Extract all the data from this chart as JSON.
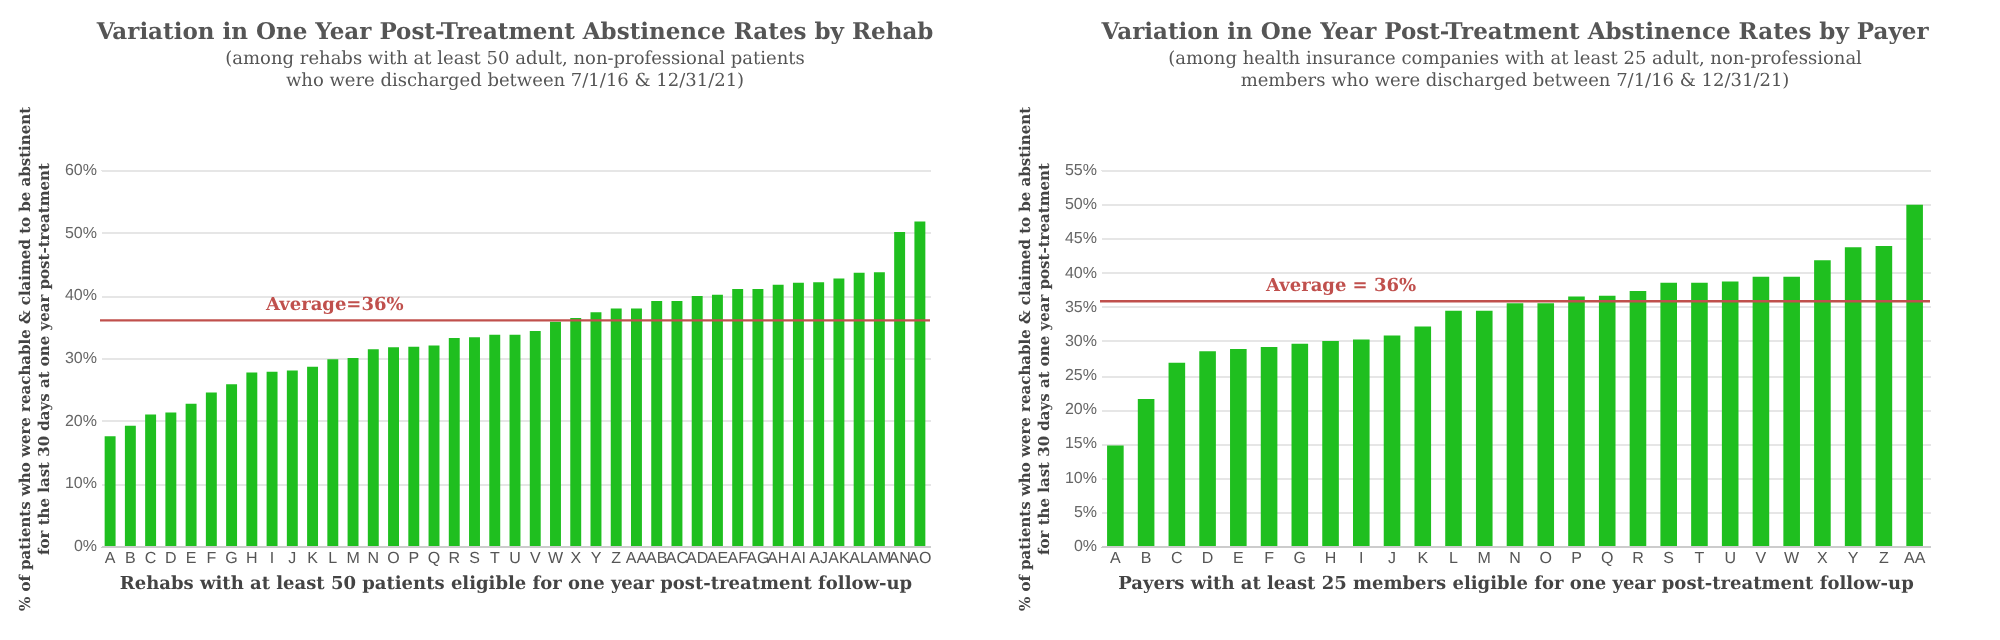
{
  "chart_data": [
    {
      "type": "bar",
      "title": "Variation in One Year Post-Treatment Abstinence Rates by Rehab",
      "subtitle": "(among rehabs with at least 50 adult, non-professional patients\nwho were discharged between 7/1/16 & 12/31/21)",
      "xlabel": "Rehabs with at least 50 patients eligible for one year post-treatment follow-up",
      "ylabel": "% of patients who were reachable & claimed to be abstinent\nfor the last 30 days at one year post-treatment",
      "categories": [
        "A",
        "B",
        "C",
        "D",
        "E",
        "F",
        "G",
        "H",
        "I",
        "J",
        "K",
        "L",
        "M",
        "N",
        "O",
        "P",
        "Q",
        "R",
        "S",
        "T",
        "U",
        "V",
        "W",
        "X",
        "Y",
        "Z",
        "AA",
        "AB",
        "AC",
        "AD",
        "AE",
        "AF",
        "AG",
        "AH",
        "AI",
        "AJ",
        "AK",
        "AL",
        "AM",
        "AN",
        "AO"
      ],
      "series": [
        {
          "color": "#1fbf1f",
          "values": [
            17.5,
            19.2,
            21,
            21.3,
            22.7,
            24.5,
            25.8,
            27.7,
            27.8,
            28,
            28.6,
            29.8,
            30,
            31.4,
            31.7,
            31.8,
            32,
            33.2,
            33.3,
            33.7,
            33.7,
            34.3,
            35.8,
            36.4,
            37.3,
            37.9,
            37.9,
            39.1,
            39.1,
            39.9,
            40.1,
            41,
            41,
            41.7,
            42,
            42.1,
            42.7,
            43.6,
            43.7,
            50.1,
            51.8
          ]
        }
      ],
      "ylim": [
        0,
        60
      ],
      "yticks": [
        {
          "value": 0,
          "label": "0%"
        },
        {
          "value": 10,
          "label": "10%"
        },
        {
          "value": 20,
          "label": "20%"
        },
        {
          "value": 30,
          "label": "30%"
        },
        {
          "value": 40,
          "label": "40%"
        },
        {
          "value": 50,
          "label": "50%"
        },
        {
          "value": 60,
          "label": "60%"
        }
      ],
      "grid": "y",
      "ref_lines": [
        {
          "axis": "y",
          "value": 36,
          "label": "Average=36%",
          "color": "#c0504d"
        }
      ]
    },
    {
      "type": "bar",
      "title": "Variation in One Year Post-Treatment Abstinence Rates by Payer",
      "subtitle": "(among health insurance companies with at least 25 adult, non-professional\nmembers who were discharged between 7/1/16 & 12/31/21)",
      "xlabel": "Payers with at least 25 members eligible for one year post-treatment follow-up",
      "ylabel": "% of patients who were reachable & claimed to be abstinent\nfor the last 30 days at one year post-treatment",
      "categories": [
        "A",
        "B",
        "C",
        "D",
        "E",
        "F",
        "G",
        "H",
        "I",
        "J",
        "K",
        "L",
        "M",
        "N",
        "O",
        "P",
        "Q",
        "R",
        "S",
        "T",
        "U",
        "V",
        "W",
        "X",
        "Y",
        "Z",
        "AA"
      ],
      "series": [
        {
          "color": "#1fbf1f",
          "values": [
            14.7,
            21.5,
            26.8,
            28.5,
            28.8,
            29.1,
            29.6,
            30,
            30.2,
            30.8,
            32.1,
            34.4,
            34.4,
            35.5,
            35.5,
            36.5,
            36.6,
            37.3,
            38.5,
            38.5,
            38.7,
            39.4,
            39.4,
            41.8,
            43.7,
            43.9,
            49.9
          ]
        }
      ],
      "ylim": [
        0,
        55
      ],
      "yticks": [
        {
          "value": 0,
          "label": "0%"
        },
        {
          "value": 5,
          "label": "5%"
        },
        {
          "value": 10,
          "label": "10%"
        },
        {
          "value": 15,
          "label": "15%"
        },
        {
          "value": 20,
          "label": "20%"
        },
        {
          "value": 25,
          "label": "25%"
        },
        {
          "value": 30,
          "label": "30%"
        },
        {
          "value": 35,
          "label": "35%"
        },
        {
          "value": 40,
          "label": "40%"
        },
        {
          "value": 45,
          "label": "45%"
        },
        {
          "value": 50,
          "label": "50%"
        },
        {
          "value": 55,
          "label": "55%"
        }
      ],
      "grid": "y",
      "ref_lines": [
        {
          "axis": "y",
          "value": 35.8,
          "label": "Average = 36%",
          "color": "#c0504d"
        }
      ]
    }
  ]
}
